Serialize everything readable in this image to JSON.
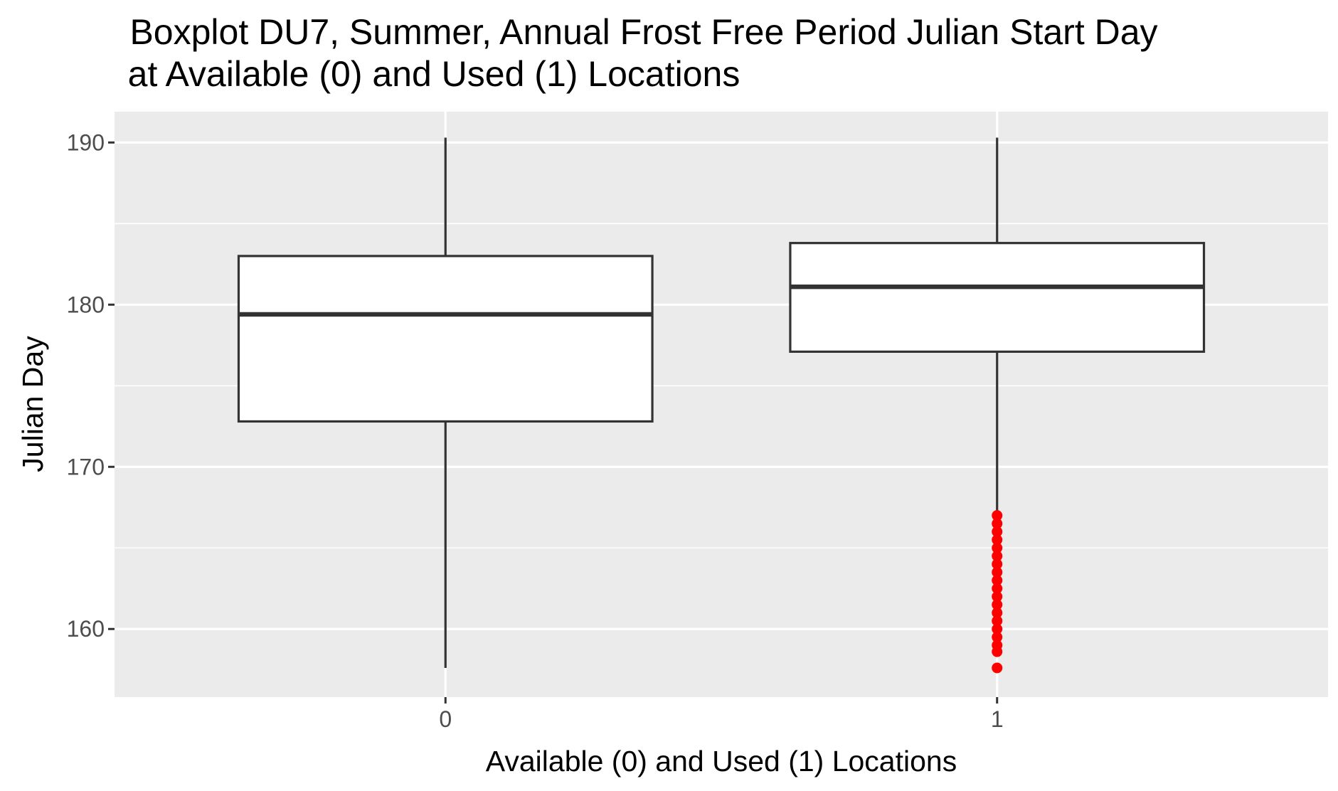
{
  "chart_data": {
    "type": "boxplot",
    "title": "Boxplot DU7, Summer, Annual Frost Free Period Julian Start Day",
    "subtitle": "at Available (0) and Used (1) Locations",
    "xlabel": "Available (0) and Used (1) Locations",
    "ylabel": "Julian Day",
    "categories": [
      "0",
      "1"
    ],
    "y_ticks": [
      160,
      170,
      180,
      190
    ],
    "y_tick_labels": [
      "160",
      "170",
      "180",
      "190"
    ],
    "ylim": [
      155.8,
      191.9
    ],
    "grid": true,
    "boxes": [
      {
        "category": "0",
        "whisker_low": 157.6,
        "q1": 172.8,
        "median": 179.4,
        "q3": 183.0,
        "whisker_high": 190.3,
        "outliers": []
      },
      {
        "category": "1",
        "whisker_low": 167.2,
        "q1": 177.1,
        "median": 181.1,
        "q3": 183.8,
        "whisker_high": 190.3,
        "outliers": [
          157.6,
          158.6,
          159.0,
          159.5,
          160.0,
          160.5,
          161.0,
          161.5,
          162.0,
          162.5,
          163.0,
          163.5,
          164.0,
          164.5,
          165.0,
          165.5,
          166.0,
          166.5,
          167.0
        ]
      }
    ],
    "colors": {
      "panel_background": "#ebebeb",
      "grid": "#ffffff",
      "box_fill": "#ffffff",
      "box_line": "#333333",
      "outlier": "#ff0000",
      "tick_label": "#4d4d4d"
    }
  }
}
